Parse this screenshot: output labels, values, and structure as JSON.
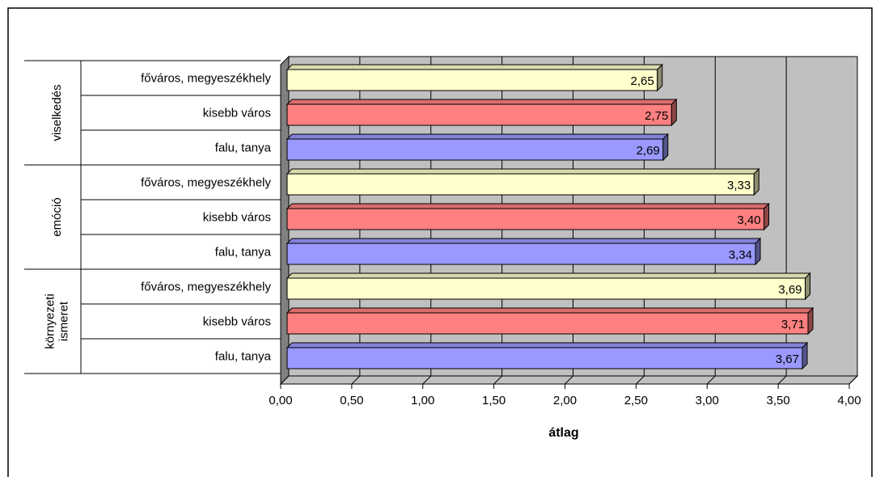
{
  "chart_data": {
    "type": "bar",
    "orientation": "horizontal",
    "style": "3d",
    "xlabel": "átlag",
    "xlim": [
      0,
      4
    ],
    "xticks": [
      "0,00",
      "0,50",
      "1,00",
      "1,50",
      "2,00",
      "2,50",
      "3,00",
      "3,50",
      "4,00"
    ],
    "grid": true,
    "groups": [
      {
        "name": "viselkedés",
        "bars": [
          {
            "category": "főváros, megyeszékhely",
            "value": 2.65,
            "label": "2,65",
            "color": "#ffffcc"
          },
          {
            "category": "kisebb város",
            "value": 2.75,
            "label": "2,75",
            "color": "#ff8080"
          },
          {
            "category": "falu, tanya",
            "value": 2.69,
            "label": "2,69",
            "color": "#9999ff"
          }
        ]
      },
      {
        "name": "emóció",
        "bars": [
          {
            "category": "főváros, megyeszékhely",
            "value": 3.33,
            "label": "3,33",
            "color": "#ffffcc"
          },
          {
            "category": "kisebb város",
            "value": 3.4,
            "label": "3,40",
            "color": "#ff8080"
          },
          {
            "category": "falu, tanya",
            "value": 3.34,
            "label": "3,34",
            "color": "#9999ff"
          }
        ]
      },
      {
        "name": "környezeti ismeret",
        "name_lines": [
          "környezeti",
          "ismeret"
        ],
        "bars": [
          {
            "category": "főváros, megyeszékhely",
            "value": 3.69,
            "label": "3,69",
            "color": "#ffffcc"
          },
          {
            "category": "kisebb város",
            "value": 3.71,
            "label": "3,71",
            "color": "#ff8080"
          },
          {
            "category": "falu, tanya",
            "value": 3.67,
            "label": "3,67",
            "color": "#9999ff"
          }
        ]
      }
    ]
  }
}
